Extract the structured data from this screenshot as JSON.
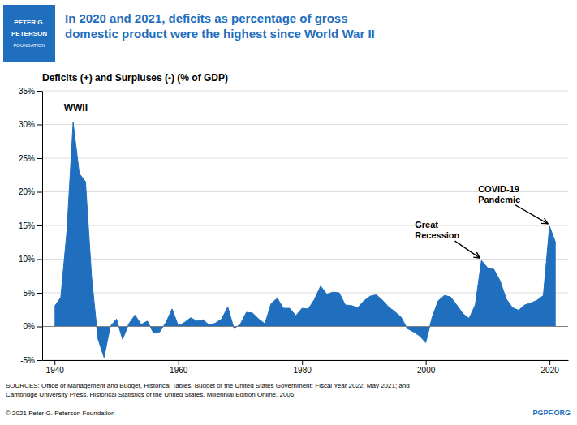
{
  "chart_data": {
    "type": "area",
    "title": "In 2020 and 2021, deficits as percentage of gross\ndomestic product were the highest since World War II",
    "subtitle": "Deficits (+) and Surpluses (-) (% of GDP)",
    "logo_text": [
      "PETER G.",
      "PETERSON",
      "FOUNDATION"
    ],
    "color": "#1F6FBE",
    "grid": true,
    "xlim": [
      1938,
      2023
    ],
    "ylim": [
      -5,
      35
    ],
    "xticks": [
      1940,
      1960,
      1980,
      2000,
      2020
    ],
    "yticks": [
      {
        "value": -5,
        "label": "-5%"
      },
      {
        "value": 0,
        "label": "0%"
      },
      {
        "value": 5,
        "label": "5%"
      },
      {
        "value": 10,
        "label": "10%"
      },
      {
        "value": 15,
        "label": "15%"
      },
      {
        "value": 20,
        "label": "20%"
      },
      {
        "value": 25,
        "label": "25%"
      },
      {
        "value": 30,
        "label": "30%"
      },
      {
        "value": 35,
        "label": "35%"
      }
    ],
    "x": [
      1940,
      1941,
      1942,
      1943,
      1944,
      1945,
      1946,
      1947,
      1948,
      1949,
      1950,
      1951,
      1952,
      1953,
      1954,
      1955,
      1956,
      1957,
      1958,
      1959,
      1960,
      1961,
      1962,
      1963,
      1964,
      1965,
      1966,
      1967,
      1968,
      1969,
      1970,
      1971,
      1972,
      1973,
      1974,
      1975,
      1976,
      1977,
      1978,
      1979,
      1980,
      1981,
      1982,
      1983,
      1984,
      1985,
      1986,
      1987,
      1988,
      1989,
      1990,
      1991,
      1992,
      1993,
      1994,
      1995,
      1996,
      1997,
      1998,
      1999,
      2000,
      2001,
      2002,
      2003,
      2004,
      2005,
      2006,
      2007,
      2008,
      2009,
      2010,
      2011,
      2012,
      2013,
      2014,
      2015,
      2016,
      2017,
      2018,
      2019,
      2020,
      2021
    ],
    "values": [
      3.0,
      4.3,
      14.2,
      30.3,
      22.7,
      21.5,
      7.2,
      -1.8,
      -4.6,
      0.0,
      1.1,
      -1.9,
      0.4,
      1.7,
      0.3,
      0.8,
      -1.0,
      -0.8,
      0.6,
      2.6,
      0.1,
      0.6,
      1.3,
      0.8,
      1.0,
      0.2,
      0.5,
      1.1,
      2.9,
      -0.3,
      0.3,
      2.1,
      2.0,
      1.1,
      0.4,
      3.4,
      4.2,
      2.7,
      2.7,
      1.6,
      2.7,
      2.6,
      4.0,
      6.0,
      4.8,
      5.1,
      5.0,
      3.2,
      3.1,
      2.8,
      3.8,
      4.5,
      4.7,
      3.9,
      2.9,
      2.2,
      1.4,
      -0.3,
      -0.8,
      -1.4,
      -2.4,
      1.3,
      3.8,
      4.6,
      4.4,
      3.2,
      1.9,
      1.2,
      3.2,
      9.8,
      8.7,
      8.5,
      6.8,
      4.1,
      2.8,
      2.4,
      3.2,
      3.5,
      3.9,
      4.6,
      14.9,
      12.4
    ],
    "annotations": [
      {
        "text": "WWII",
        "x": 1941.5,
        "y": 31.8
      },
      {
        "text": "Great\nRecession",
        "x": 2009,
        "y": 9.8
      },
      {
        "text": "COVID-19\nPandemic",
        "x": 2020,
        "y": 14.9
      }
    ],
    "sources": "SOURCES: Office of Management and Budget, Historical Tables, Budget of the United States Government: Fiscal Year 2022, May 2021; and\nCambridge University Press, Historical Statistics of the United States, Millennial Edition Online, 2006.",
    "copyright": "© 2021 Peter G. Peterson Foundation",
    "credit": "PGPF.ORG"
  }
}
